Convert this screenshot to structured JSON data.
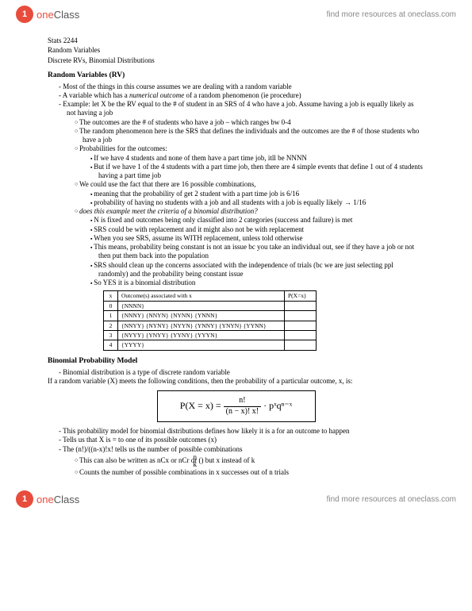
{
  "brand": {
    "circle": "1",
    "textOne": "one",
    "textClass": "Class",
    "tagline": "find more resources at oneclass.com"
  },
  "meta": {
    "l1": "Stats 2244",
    "l2": "Random Variables",
    "l3": "Discrete RVs, Binomial Distributions"
  },
  "sec1": {
    "title": "Random Variables (RV)",
    "b1": "Most of the things in this course assumes we are dealing with a random variable",
    "b2a": "A variable which has a ",
    "b2b": "numerical outcome",
    "b2c": " of a random phenomenon (ie procedure)",
    "b3": "Example: let X be the RV equal to the # of student in an SRS of 4 who have a job. Assume having a job is equally likely as not having a job",
    "c1": "The outcomes are the # of students who have a job – which ranges bw 0-4",
    "c2": "The random phenomenon here is the SRS that defines the individuals and the outcomes are the # of those students who have a job",
    "c3": "Probabilities for the outcomes:",
    "s1": "If we have 4 students and none of them have a part time job, itll be NNNN",
    "s2": "But if we have 1 of the 4 students with a part time job, then there are 4 simple events that define 1 out of 4 students having a part time job",
    "c4": "We could use the fact that there are 16 possible combinations,",
    "s3": "meaning that the probability of get 2 student with a part time job is 6/16",
    "s4": "probability of having no students with a job and all students with a job is equally likely → 1/16",
    "c5": "does this example meet the criteria of a binomial distribution?",
    "s5": "N is fixed and outcomes being only classified into 2 categories (success and failure) is met",
    "s6": "SRS could be with replacement and it might also not be with replacement",
    "s7": "When you see SRS, assume its WITH replacement, unless told otherwise",
    "s8": "This means, probability being constant is not an issue bc you take an individual out, see if they have a job or not then put them back into the population",
    "s9": "SRS should clean up the concerns associated with the independence of trials (bc we are just selecting ppl randomly) and the probability being constant issue",
    "s10": "So YES it is a binomial distribution"
  },
  "table": {
    "h1": "x",
    "h2": "Outcome(s) associated with x",
    "h3": "P(X=x)",
    "rows": [
      {
        "x": "0",
        "o": "{NNNN}"
      },
      {
        "x": "1",
        "o": "{NNNY}  {NNYN}  {NYNN}  {YNNN}"
      },
      {
        "x": "2",
        "o": "{NNYY}  {NYNY}  {NYYN}  {YNNY}  {YNYN}  {YYNN}"
      },
      {
        "x": "3",
        "o": "{NYYY}  {YNYY}  {YYNY}  {YYYN}"
      },
      {
        "x": "4",
        "o": "{YYYY}"
      }
    ]
  },
  "sec2": {
    "title": "Binomial Probability Model",
    "b1": "Binomial distribution is a type of discrete random variable",
    "intro": "If a random variable (X) meets the following conditions, then the probability of a particular outcome, x, is:",
    "formula": {
      "lhs": "P(X = x) = ",
      "num": "n!",
      "den": "(n − x)! x!",
      "tail": " · pˣqⁿ⁻ˣ"
    },
    "b2": "This probability model for binomial distributions defines how likely it is a for an outcome to happen",
    "b3": "Tells us that X is = to one of its possible outcomes (x)",
    "b4": "The (n!)/((n-x)!x! tells us the number of possible combinations",
    "c1a": "This can also be written as nCx or nCr or ",
    "c1b": " but x instead of k",
    "binom": {
      "top": "n",
      "bot": "k"
    },
    "c2": "Counts the number of possible combinations in x successes out of n trials"
  }
}
